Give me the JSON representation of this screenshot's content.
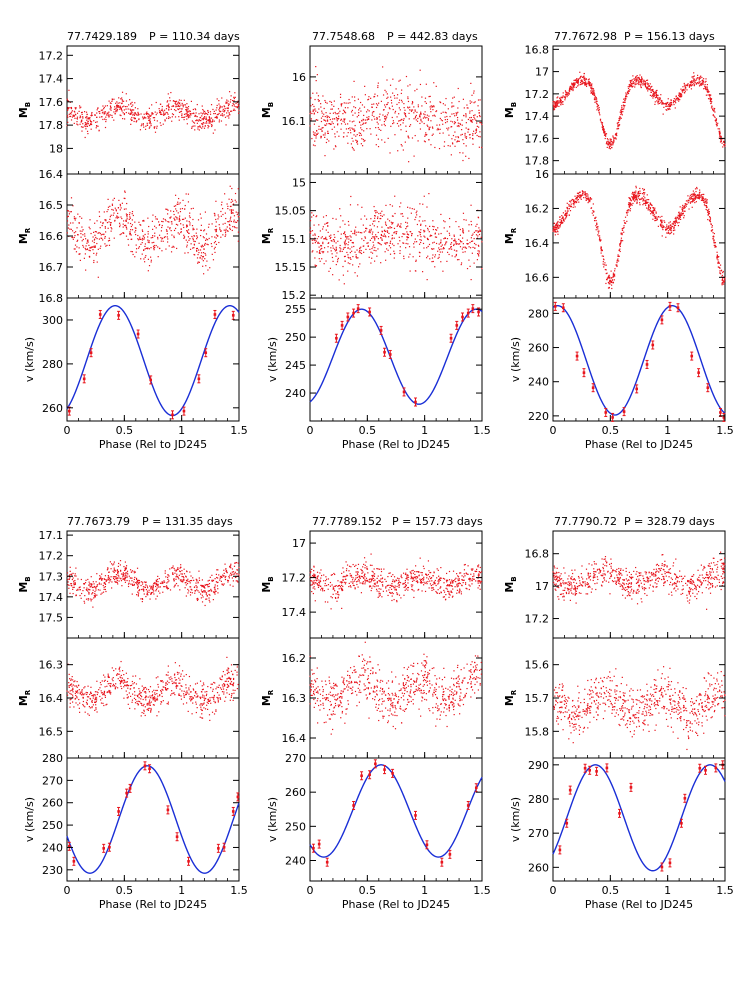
{
  "figure": {
    "panels": [
      {
        "title_id": "77.7429.189",
        "title_period": "P = 110.34 days"
      },
      {
        "title_id": "77.7548.68",
        "title_period": "P = 442.83 days"
      },
      {
        "title_id": "77.7672.98",
        "title_period": "P = 156.13 days"
      },
      {
        "title_id": "77.7673.79",
        "title_period": "P = 131.35 days"
      },
      {
        "title_id": "77.7789.152",
        "title_period": "P = 157.73 days"
      },
      {
        "title_id": "77.7790.72",
        "title_period": "P = 328.79 days"
      }
    ]
  },
  "colors": {
    "points": "#e8141c",
    "errorbars": "#e8141c",
    "fit": "#1a2fd6",
    "axes": "#000000"
  },
  "chart_data": [
    {
      "type": "scatter",
      "title": "77.7429.189 P = 110.34 days",
      "period_days": 110.34,
      "xlabel": "Phase (Rel to JD245",
      "xlim": [
        0,
        1.5
      ],
      "xticks": [
        0,
        0.5,
        1,
        1.5
      ],
      "mb": {
        "ylabel": "MB",
        "ylim_top_to_bottom": [
          17.12,
          18.22
        ],
        "yticks": [
          17.2,
          17.4,
          17.6,
          17.8,
          18
        ],
        "mean": 17.7,
        "amp": 0.06,
        "noise": 0.05,
        "shape": "sine2",
        "phase_offset": 0.0,
        "n_points": 700
      },
      "mr": {
        "ylabel": "MR",
        "ylim_top_to_bottom": [
          16.4,
          16.8
        ],
        "yticks": [
          16.4,
          16.5,
          16.6,
          16.7,
          16.8
        ],
        "mean": 16.58,
        "amp": 0.05,
        "noise": 0.04,
        "shape": "sine2",
        "phase_offset": 0.0,
        "n_points": 700
      },
      "rv": {
        "ylabel": "v (km/s)",
        "ylim": [
          254,
          310
        ],
        "yticks": [
          260,
          280,
          300
        ],
        "fit_mean": 281.5,
        "fit_amp": 25.0,
        "fit_peak_phase": 0.42,
        "points": [
          [
            0.02,
            258.5
          ],
          [
            0.15,
            273.2
          ],
          [
            0.21,
            285.1
          ],
          [
            0.29,
            302.5
          ],
          [
            0.45,
            302.1
          ],
          [
            0.62,
            293.6
          ],
          [
            0.73,
            272.7
          ],
          [
            0.92,
            256.8
          ],
          [
            1.02,
            258.5
          ],
          [
            1.15,
            273.2
          ],
          [
            1.21,
            285.1
          ],
          [
            1.29,
            302.5
          ],
          [
            1.45,
            302.1
          ]
        ]
      }
    },
    {
      "type": "scatter",
      "title": "77.7548.68 P = 442.83 days",
      "period_days": 442.83,
      "xlabel": "Phase (Rel to JD245",
      "xlim": [
        0,
        1.5
      ],
      "xticks": [
        0,
        0.5,
        1,
        1.5
      ],
      "mb": {
        "ylabel": "MB",
        "ylim_top_to_bottom": [
          15.93,
          16.22
        ],
        "yticks": [
          16,
          16.1
        ],
        "mean": 16.09,
        "amp": 0.01,
        "noise": 0.035,
        "shape": "sine",
        "phase_offset": 0.0,
        "n_points": 700
      },
      "mr": {
        "ylabel": "MR",
        "ylim_top_to_bottom": [
          14.985,
          15.205
        ],
        "yticks": [
          15,
          15.05,
          15.1,
          15.15,
          15.2
        ],
        "mean": 15.1,
        "amp": 0.012,
        "noise": 0.025,
        "shape": "sine",
        "phase_offset": 0.0,
        "n_points": 700
      },
      "rv": {
        "ylabel": "v (km/s)",
        "ylim": [
          235,
          257
        ],
        "yticks": [
          240,
          245,
          250,
          255
        ],
        "fit_mean": 246.5,
        "fit_amp": 8.5,
        "fit_peak_phase": 0.45,
        "points": [
          [
            0.23,
            249.8
          ],
          [
            0.28,
            252.1
          ],
          [
            0.33,
            253.6
          ],
          [
            0.38,
            254.3
          ],
          [
            0.42,
            255.1
          ],
          [
            0.52,
            254.5
          ],
          [
            0.62,
            251.2
          ],
          [
            0.65,
            247.3
          ],
          [
            0.7,
            246.9
          ],
          [
            0.82,
            240.2
          ],
          [
            0.92,
            238.4
          ],
          [
            1.23,
            249.8
          ],
          [
            1.28,
            252.1
          ],
          [
            1.33,
            253.6
          ],
          [
            1.38,
            254.3
          ],
          [
            1.42,
            255.1
          ],
          [
            1.47,
            254.5
          ]
        ]
      }
    },
    {
      "type": "scatter",
      "title": "77.7672.98 P = 156.13 days",
      "period_days": 156.13,
      "xlabel": "Phase (Rel to JD245",
      "xlim": [
        0,
        1.5
      ],
      "xticks": [
        0,
        0.5,
        1,
        1.5
      ],
      "mb": {
        "ylabel": "MB",
        "ylim_top_to_bottom": [
          16.77,
          17.92
        ],
        "yticks": [
          16.8,
          17,
          17.2,
          17.4,
          17.6,
          17.8
        ],
        "mean": 17.05,
        "amp": 0.6,
        "noise": 0.025,
        "shape": "eclipse",
        "phase_offset": 0.0,
        "n_points": 900
      },
      "mr": {
        "ylabel": "MR",
        "ylim_top_to_bottom": [
          16.0,
          16.72
        ],
        "yticks": [
          16,
          16.2,
          16.4,
          16.6
        ],
        "mean": 16.1,
        "amp": 0.52,
        "noise": 0.02,
        "shape": "eclipse",
        "phase_offset": 0.0,
        "n_points": 900
      },
      "rv": {
        "ylabel": "v (km/s)",
        "ylim": [
          217,
          289
        ],
        "yticks": [
          220,
          240,
          260,
          280
        ],
        "fit_mean": 252.5,
        "fit_amp": 32.0,
        "fit_peak_phase": 0.04,
        "points": [
          [
            0.02,
            284.1
          ],
          [
            0.09,
            283.3
          ],
          [
            0.21,
            255.0
          ],
          [
            0.27,
            245.3
          ],
          [
            0.35,
            236.5
          ],
          [
            0.46,
            222.0
          ],
          [
            0.52,
            219.1
          ],
          [
            0.62,
            222.5
          ],
          [
            0.73,
            235.8
          ],
          [
            0.82,
            250.1
          ],
          [
            0.87,
            261.5
          ],
          [
            0.95,
            276.2
          ],
          [
            1.02,
            284.1
          ],
          [
            1.09,
            283.3
          ],
          [
            1.21,
            255.0
          ],
          [
            1.27,
            245.3
          ],
          [
            1.35,
            236.5
          ],
          [
            1.46,
            222.0
          ],
          [
            1.49,
            219.1
          ]
        ]
      }
    },
    {
      "type": "scatter",
      "title": "77.7673.79 P = 131.35 days",
      "period_days": 131.35,
      "xlabel": "Phase (Rel to JD245",
      "xlim": [
        0,
        1.5
      ],
      "xticks": [
        0,
        0.5,
        1,
        1.5
      ],
      "mb": {
        "ylabel": "MB",
        "ylim_top_to_bottom": [
          17.08,
          17.6
        ],
        "yticks": [
          17.1,
          17.2,
          17.3,
          17.4,
          17.5
        ],
        "mean": 17.33,
        "amp": 0.04,
        "noise": 0.03,
        "shape": "sine2",
        "phase_offset": 0.0,
        "n_points": 700
      },
      "mr": {
        "ylabel": "MR",
        "ylim_top_to_bottom": [
          16.22,
          16.58
        ],
        "yticks": [
          16.3,
          16.4,
          16.5
        ],
        "mean": 16.38,
        "amp": 0.035,
        "noise": 0.025,
        "shape": "sine2",
        "phase_offset": 0.0,
        "n_points": 700
      },
      "rv": {
        "ylabel": "v (km/s)",
        "ylim": [
          225,
          280
        ],
        "yticks": [
          230,
          240,
          250,
          260,
          270,
          280
        ],
        "fit_mean": 252.5,
        "fit_amp": 24.0,
        "fit_peak_phase": 0.7,
        "points": [
          [
            0.02,
            240.5
          ],
          [
            0.06,
            233.8
          ],
          [
            0.32,
            239.6
          ],
          [
            0.37,
            240.1
          ],
          [
            0.45,
            256.1
          ],
          [
            0.52,
            264.3
          ],
          [
            0.55,
            266.4
          ],
          [
            0.68,
            276.5
          ],
          [
            0.72,
            275.2
          ],
          [
            0.88,
            256.8
          ],
          [
            0.96,
            244.8
          ],
          [
            1.06,
            233.8
          ],
          [
            1.32,
            239.6
          ],
          [
            1.37,
            240.1
          ],
          [
            1.45,
            256.1
          ],
          [
            1.49,
            262.6
          ]
        ]
      }
    },
    {
      "type": "scatter",
      "title": "77.7789.152 P = 157.73 days",
      "period_days": 157.73,
      "xlabel": "Phase (Rel to JD245",
      "xlim": [
        0,
        1.5
      ],
      "xticks": [
        0,
        0.5,
        1,
        1.5
      ],
      "mb": {
        "ylabel": "MB",
        "ylim_top_to_bottom": [
          16.93,
          17.55
        ],
        "yticks": [
          17,
          17.2,
          17.4
        ],
        "mean": 17.22,
        "amp": 0.03,
        "noise": 0.04,
        "shape": "sine2",
        "phase_offset": 0.0,
        "n_points": 700
      },
      "mr": {
        "ylabel": "MR",
        "ylim_top_to_bottom": [
          16.15,
          16.45
        ],
        "yticks": [
          16.2,
          16.3,
          16.4
        ],
        "mean": 16.28,
        "amp": 0.03,
        "noise": 0.03,
        "shape": "sine2",
        "phase_offset": 0.0,
        "n_points": 700
      },
      "rv": {
        "ylabel": "v (km/s)",
        "ylim": [
          234,
          270
        ],
        "yticks": [
          240,
          250,
          260,
          270
        ],
        "fit_mean": 254.5,
        "fit_amp": 13.5,
        "fit_peak_phase": 0.62,
        "points": [
          [
            0.03,
            243.6
          ],
          [
            0.08,
            244.8
          ],
          [
            0.15,
            239.5
          ],
          [
            0.38,
            256.1
          ],
          [
            0.45,
            264.8
          ],
          [
            0.52,
            265.1
          ],
          [
            0.57,
            268.3
          ],
          [
            0.65,
            266.6
          ],
          [
            0.72,
            265.5
          ],
          [
            0.92,
            253.2
          ],
          [
            1.02,
            244.6
          ],
          [
            1.15,
            239.5
          ],
          [
            1.22,
            241.8
          ],
          [
            1.38,
            256.1
          ],
          [
            1.45,
            261.3
          ]
        ]
      }
    },
    {
      "type": "scatter",
      "title": "77.7790.72 P = 328.79 days",
      "period_days": 328.79,
      "xlabel": "Phase (Rel to JD245",
      "xlim": [
        0,
        1.5
      ],
      "xticks": [
        0,
        0.5,
        1,
        1.5
      ],
      "mb": {
        "ylabel": "MB",
        "ylim_top_to_bottom": [
          16.66,
          17.32
        ],
        "yticks": [
          16.8,
          17,
          17.2
        ],
        "mean": 16.96,
        "amp": 0.04,
        "noise": 0.045,
        "shape": "sine2",
        "phase_offset": 0.0,
        "n_points": 700
      },
      "mr": {
        "ylabel": "MR",
        "ylim_top_to_bottom": [
          15.52,
          15.88
        ],
        "yticks": [
          15.6,
          15.7,
          15.8
        ],
        "mean": 15.72,
        "amp": 0.035,
        "noise": 0.035,
        "shape": "sine2",
        "phase_offset": 0.0,
        "n_points": 700
      },
      "rv": {
        "ylabel": "v (km/s)",
        "ylim": [
          256,
          292
        ],
        "yticks": [
          260,
          270,
          280,
          290
        ],
        "fit_mean": 274.5,
        "fit_amp": 15.5,
        "fit_peak_phase": 0.37,
        "points": [
          [
            0.06,
            265.1
          ],
          [
            0.12,
            272.9
          ],
          [
            0.15,
            282.6
          ],
          [
            0.28,
            289.0
          ],
          [
            0.32,
            288.4
          ],
          [
            0.38,
            288.1
          ],
          [
            0.47,
            289.1
          ],
          [
            0.58,
            275.8
          ],
          [
            0.68,
            283.4
          ],
          [
            0.95,
            260.1
          ],
          [
            1.02,
            261.3
          ],
          [
            1.12,
            272.9
          ],
          [
            1.15,
            280.2
          ],
          [
            1.28,
            289.0
          ],
          [
            1.33,
            288.4
          ],
          [
            1.42,
            289.1
          ],
          [
            1.48,
            290.0
          ]
        ]
      }
    }
  ]
}
